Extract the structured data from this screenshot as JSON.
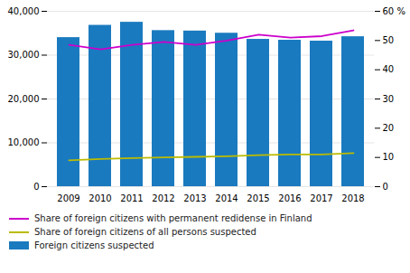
{
  "chart_data": {
    "type": "bar",
    "categories": [
      "2009",
      "2010",
      "2011",
      "2012",
      "2013",
      "2014",
      "2015",
      "2016",
      "2017",
      "2018"
    ],
    "series": [
      {
        "name": "Share of foreign citizens with permanent redidense in Finland",
        "type": "line",
        "axis": "y2",
        "color": "#cc00cc",
        "values": [
          48.5,
          47.0,
          48.5,
          49.5,
          48.5,
          50.0,
          52.0,
          51.0,
          51.5,
          53.5
        ]
      },
      {
        "name": "Share of foreign citizens of all persons suspected",
        "type": "line",
        "axis": "y2",
        "color": "#bbbb00",
        "values": [
          9.0,
          9.5,
          9.8,
          10.0,
          10.2,
          10.4,
          10.8,
          11.0,
          11.0,
          11.5
        ]
      },
      {
        "name": "Foreign citizens suspected",
        "type": "bar",
        "color": "#1a7abf",
        "values": [
          34000,
          36800,
          37500,
          35600,
          35500,
          35000,
          33600,
          33400,
          33200,
          34200
        ]
      }
    ],
    "ylim": [
      0,
      40000
    ],
    "yticks": [
      0,
      {
        "value": 10000,
        "label": "10,000"
      },
      {
        "value": 20000,
        "label": "20,000"
      },
      {
        "value": 30000,
        "label": "30,000"
      },
      {
        "value": 40000,
        "label": "40,000"
      }
    ],
    "y2lim": [
      0,
      60
    ],
    "y2ticks": [
      0,
      10,
      20,
      30,
      40,
      50,
      {
        "value": 60,
        "label": "60 %"
      }
    ],
    "grid": true,
    "legend": "bottom"
  }
}
